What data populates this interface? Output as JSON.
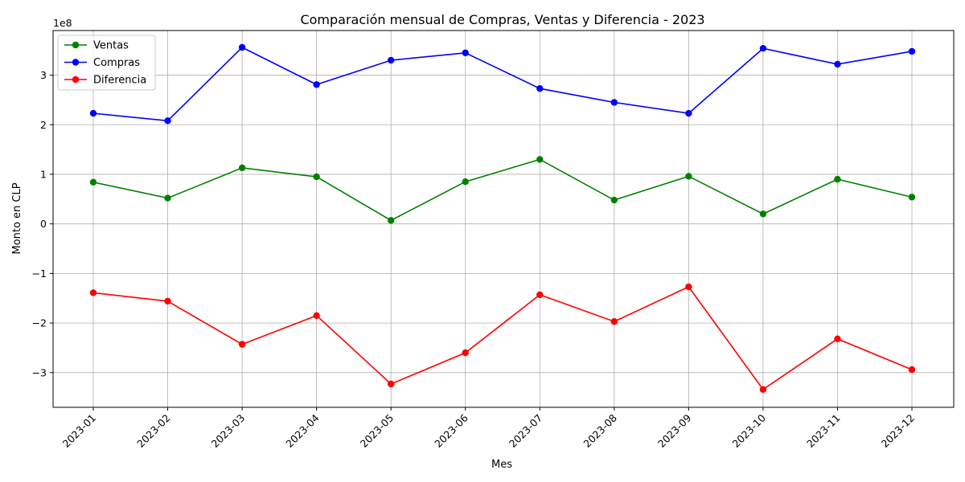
{
  "chart_data": {
    "type": "line",
    "title": "Comparación mensual de Compras, Ventas y Diferencia - 2023",
    "xlabel": "Mes",
    "ylabel": "Monto en CLP",
    "y_offset_text": "1e8",
    "categories": [
      "2023-01",
      "2023-02",
      "2023-03",
      "2023-04",
      "2023-05",
      "2023-06",
      "2023-07",
      "2023-08",
      "2023-09",
      "2023-10",
      "2023-11",
      "2023-12"
    ],
    "yticks": [
      -3,
      -2,
      -1,
      0,
      1,
      2,
      3
    ],
    "ytick_labels": [
      "−3",
      "−2",
      "−1",
      "0",
      "1",
      "2",
      "3"
    ],
    "ylim": [
      -3.7,
      3.9
    ],
    "grid": true,
    "legend_position": "upper-left",
    "series": [
      {
        "name": "Ventas",
        "color": "#008000",
        "marker": "circle",
        "values": [
          0.84,
          0.52,
          1.13,
          0.95,
          0.07,
          0.85,
          1.3,
          0.48,
          0.96,
          0.2,
          0.9,
          0.54
        ]
      },
      {
        "name": "Compras",
        "color": "#0000ff",
        "marker": "circle",
        "values": [
          2.23,
          2.08,
          3.56,
          2.81,
          3.3,
          3.45,
          2.73,
          2.45,
          2.23,
          3.54,
          3.22,
          3.48
        ]
      },
      {
        "name": "Diferencia",
        "color": "#ff0000",
        "marker": "circle",
        "values": [
          -1.39,
          -1.56,
          -2.43,
          -1.85,
          -3.23,
          -2.6,
          -1.43,
          -1.97,
          -1.27,
          -3.34,
          -2.32,
          -2.94
        ]
      }
    ]
  }
}
